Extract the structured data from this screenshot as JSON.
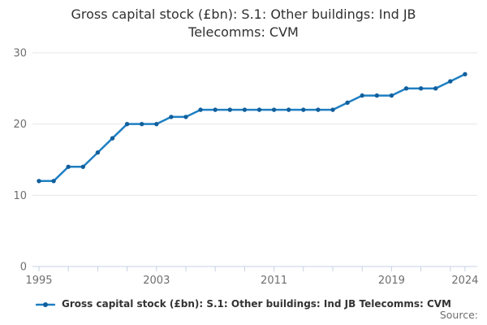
{
  "title_line1": "Gross capital stock (£bn): S.1: Other buildings: Ind JB",
  "title_line2": "Telecomms: CVM",
  "legend": {
    "label": "Gross capital stock (£bn): S.1: Other buildings: Ind JB Telecomms: CVM",
    "marker": "line-with-dot"
  },
  "source_label": "Source:",
  "colors": {
    "line": "#1e7fc2",
    "marker": "#11609d",
    "grid": "#e6e6e6",
    "axis": "#c6d0e2",
    "tick_label": "#6e6e6e",
    "title": "#303030",
    "legend_text": "#333333",
    "source_text": "#6e6e6e"
  },
  "chart_data": {
    "type": "line",
    "title": "Gross capital stock (£bn): S.1: Other buildings: Ind JB Telecomms: CVM",
    "xlabel": "",
    "ylabel": "",
    "xlim": [
      1995,
      2024
    ],
    "ylim": [
      0,
      30
    ],
    "grid": "horizontal",
    "legend_position": "bottom",
    "y_ticks": [
      0,
      10,
      20,
      30
    ],
    "x_tick_years": [
      1995,
      1997,
      1999,
      2001,
      2003,
      2005,
      2007,
      2009,
      2011,
      2013,
      2015,
      2017,
      2019,
      2021,
      2023,
      2024
    ],
    "x_labeled_ticks": [
      1995,
      2003,
      2011,
      2019,
      2024
    ],
    "series": [
      {
        "name": "Gross capital stock (£bn): S.1: Other buildings: Ind JB Telecomms: CVM",
        "x": [
          1995,
          1996,
          1997,
          1998,
          1999,
          2000,
          2001,
          2002,
          2003,
          2004,
          2005,
          2006,
          2007,
          2008,
          2009,
          2010,
          2011,
          2012,
          2013,
          2014,
          2015,
          2016,
          2017,
          2018,
          2019,
          2020,
          2021,
          2022,
          2023,
          2024
        ],
        "values": [
          12,
          12,
          14,
          14,
          16,
          18,
          20,
          20,
          20,
          21,
          21,
          22,
          22,
          22,
          22,
          22,
          22,
          22,
          22,
          22,
          22,
          23,
          24,
          24,
          24,
          25,
          25,
          25,
          26,
          27
        ]
      }
    ]
  }
}
